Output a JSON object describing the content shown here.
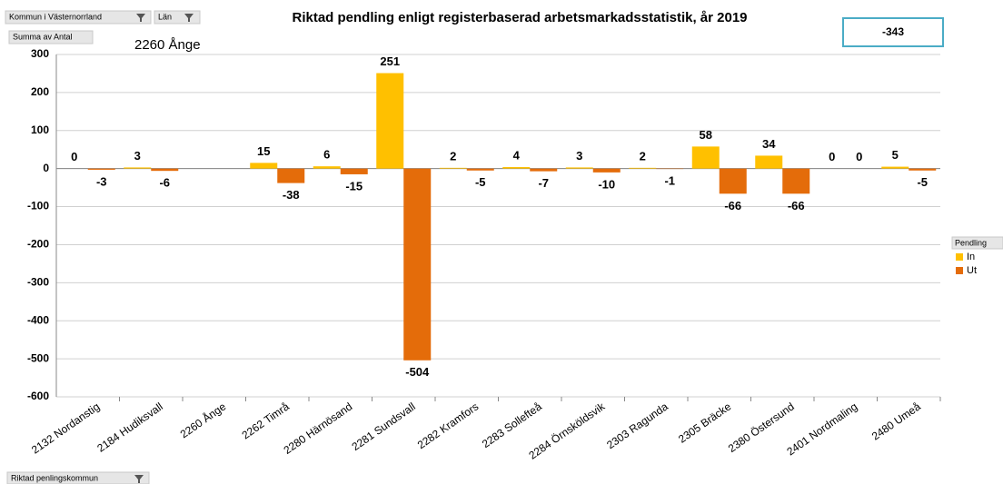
{
  "ui": {
    "filter_1": "Kommun i Västernorrland",
    "filter_2": "Län",
    "measure": "Summa av Antal",
    "selected": "2260 Ånge",
    "total": -343,
    "legend_field": "Pendling",
    "axis_field": "Riktad penlingskommun"
  },
  "chart_data": {
    "type": "bar",
    "title": "Riktad pendling enligt registerbaserad arbetsmarkadsstatistik, år 2019",
    "categories": [
      "2132 Nordanstig",
      "2184 Hudiksvall",
      "2260 Ånge",
      "2262 Timrå",
      "2280 Härnösand",
      "2281 Sundsvall",
      "2282 Kramfors",
      "2283 Sollefteå",
      "2284 Örnsköldsvik",
      "2303 Ragunda",
      "2305 Bräcke",
      "2380 Östersund",
      "2401 Nordmaling",
      "2480 Umeå"
    ],
    "series": [
      {
        "name": "In",
        "color": "#ffc000",
        "values": [
          0,
          3,
          null,
          15,
          6,
          251,
          2,
          4,
          3,
          2,
          58,
          34,
          0,
          5
        ]
      },
      {
        "name": "Ut",
        "color": "#e46c0a",
        "values": [
          -3,
          -6,
          null,
          -38,
          -15,
          -504,
          -5,
          -7,
          -10,
          -1,
          -66,
          -66,
          0,
          -5
        ]
      }
    ],
    "ylim": [
      -600,
      300
    ],
    "yticks": [
      -600,
      -500,
      -400,
      -300,
      -200,
      -100,
      0,
      100,
      200,
      300
    ],
    "grid": true,
    "legend": "right"
  }
}
